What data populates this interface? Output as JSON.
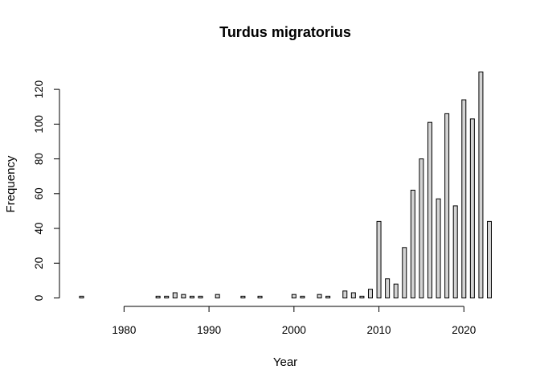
{
  "chart_data": {
    "type": "bar",
    "title": "Turdus migratorius",
    "xlabel": "Year",
    "ylabel": "Frequency",
    "x": [
      1975,
      1976,
      1977,
      1978,
      1979,
      1980,
      1981,
      1982,
      1983,
      1984,
      1985,
      1986,
      1987,
      1988,
      1989,
      1990,
      1991,
      1992,
      1993,
      1994,
      1995,
      1996,
      1997,
      1998,
      1999,
      2000,
      2001,
      2002,
      2003,
      2004,
      2005,
      2006,
      2007,
      2008,
      2009,
      2010,
      2011,
      2012,
      2013,
      2014,
      2015,
      2016,
      2017,
      2018,
      2019,
      2020,
      2021,
      2022,
      2023
    ],
    "values": [
      1,
      0,
      0,
      0,
      0,
      0,
      0,
      0,
      0,
      1,
      1,
      3,
      2,
      1,
      1,
      0,
      2,
      0,
      0,
      1,
      0,
      1,
      0,
      0,
      0,
      2,
      1,
      0,
      2,
      1,
      0,
      4,
      3,
      1,
      5,
      44,
      11,
      8,
      29,
      62,
      80,
      101,
      57,
      106,
      53,
      114,
      103,
      130,
      44
    ],
    "xticks": [
      1980,
      1990,
      2000,
      2010,
      2020
    ],
    "yticks": [
      0,
      20,
      40,
      60,
      80,
      100,
      120
    ],
    "xlim": [
      1975,
      2023
    ],
    "ylim": [
      0,
      130
    ],
    "grid": false,
    "bar_color": "#d3d3d3"
  }
}
